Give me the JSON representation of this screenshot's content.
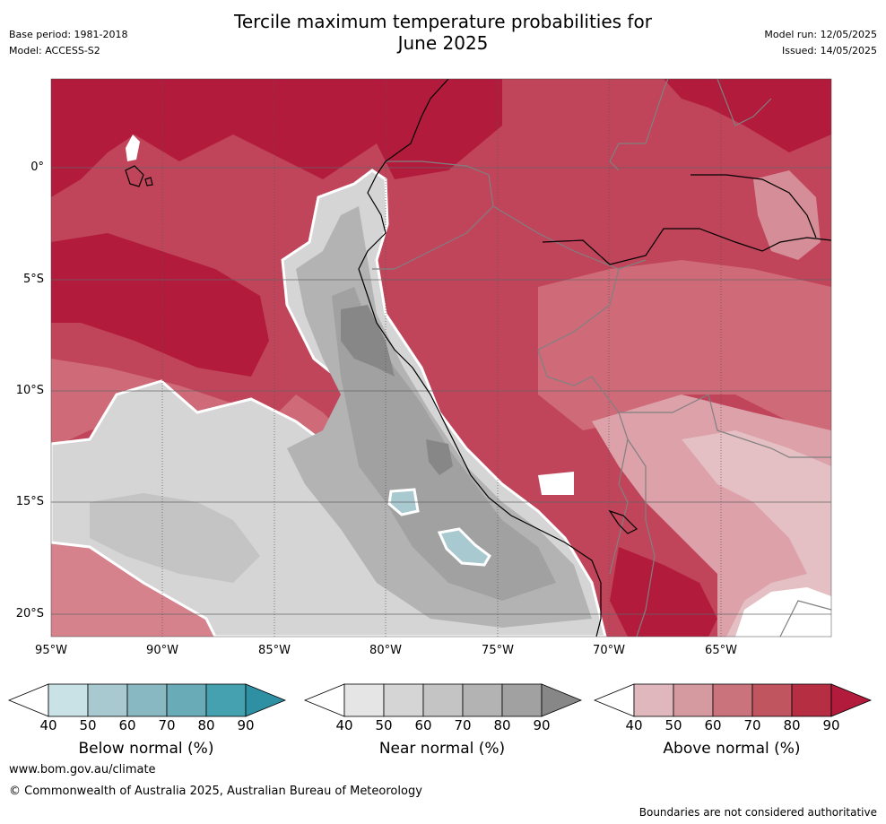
{
  "title": {
    "line1": "Tercile maximum temperature probabilities for",
    "line2": "June 2025"
  },
  "meta_left": {
    "base_period": "Base period: 1981-2018",
    "model": "Model: ACCESS-S2"
  },
  "meta_right": {
    "model_run": "Model run: 12/05/2025",
    "issued": "Issued: 14/05/2025"
  },
  "map": {
    "lat_ticks": [
      "0°",
      "5°S",
      "10°S",
      "15°S",
      "20°S"
    ],
    "lon_ticks": [
      "95°W",
      "90°W",
      "85°W",
      "80°W",
      "75°W",
      "70°W",
      "65°W"
    ],
    "colors": {
      "above_90": "#b21b3c",
      "above_80": "#bf3a50",
      "above_70": "#c95b69",
      "above_60": "#d17b86",
      "above_50": "#dca1a9",
      "near_50": "#d5d5d5",
      "near_60": "#c4c4c4",
      "near_70": "#b3b3b3",
      "near_80": "#a1a1a1",
      "near_90": "#878787",
      "below_50": "#a7c9cf",
      "border": "#808080",
      "coast": "#000000"
    }
  },
  "colorbars": [
    {
      "label": "Below normal (%)",
      "ticks": [
        "40",
        "50",
        "60",
        "70",
        "80",
        "90"
      ],
      "colors": [
        "#ffffff",
        "#c9e2e6",
        "#a7c9cf",
        "#88b8c2",
        "#6aabb8",
        "#45a0b0",
        "#2f90a4"
      ]
    },
    {
      "label": "Near normal (%)",
      "ticks": [
        "40",
        "50",
        "60",
        "70",
        "80",
        "90"
      ],
      "colors": [
        "#ffffff",
        "#e5e5e5",
        "#d5d5d5",
        "#c4c4c4",
        "#b3b3b3",
        "#a1a1a1",
        "#878787"
      ]
    },
    {
      "label": "Above normal (%)",
      "ticks": [
        "40",
        "50",
        "60",
        "70",
        "80",
        "90"
      ],
      "colors": [
        "#ffffff",
        "#e0b7bc",
        "#d59a9f",
        "#ca737d",
        "#c0545f",
        "#b62e42",
        "#b21b3c"
      ]
    }
  ],
  "footer": {
    "url": "www.bom.gov.au/climate",
    "copyright": "© Commonwealth of Australia 2025, Australian Bureau of Meteorology",
    "note": "Boundaries are not considered authoritative"
  }
}
